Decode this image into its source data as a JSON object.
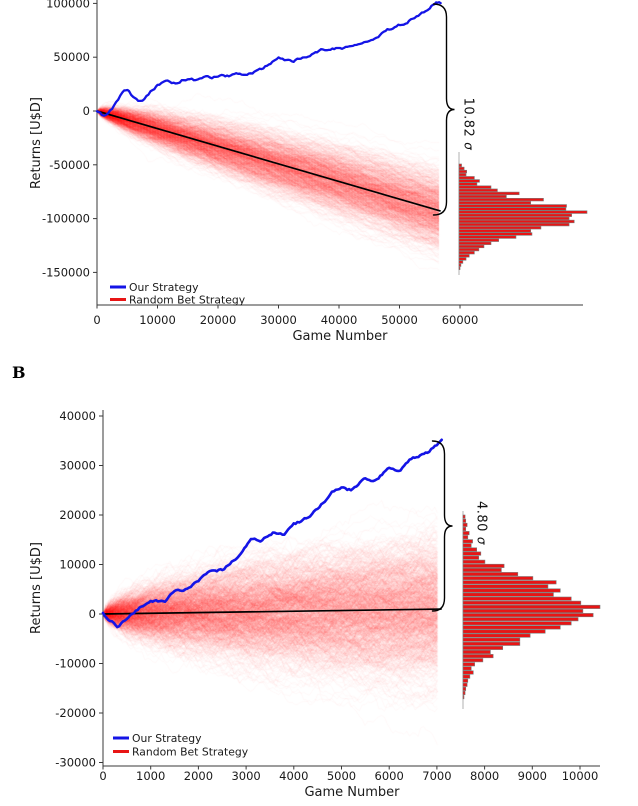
{
  "figure_title": "",
  "panel_b_label": "B",
  "chart_data": [
    {
      "id": "A",
      "type": "line",
      "subtype": "random-walk-ensemble-with-terminal-histogram",
      "xlabel": "Game Number",
      "ylabel": "Returns [U$D]",
      "xlim": [
        0,
        60000
      ],
      "ylim": [
        -150000,
        100000
      ],
      "x_ticks": [
        0,
        10000,
        20000,
        30000,
        40000,
        50000,
        60000
      ],
      "x_tick_labels": [
        "0",
        "10000",
        "20000",
        "30000",
        "40000",
        "50000",
        "60000"
      ],
      "y_ticks": [
        100000,
        50000,
        0,
        -50000,
        -100000,
        -150000
      ],
      "y_tick_labels": [
        "100000",
        "50000",
        "0",
        "-50000",
        "-100000",
        "-150000"
      ],
      "legend": [
        {
          "label": "Our Strategy",
          "color": "#1414e6"
        },
        {
          "label": "Random Bet Strategy",
          "color": "#e81515"
        }
      ],
      "annotation": {
        "value": "10.82",
        "sigma": "σ"
      },
      "colors": {
        "our_strategy": "#1414e6",
        "random_ensemble": "#ff0000",
        "mean_line": "#000000",
        "histogram_fill": "#e81414",
        "histogram_edge": "#7a7a7a"
      },
      "our_strategy_waypoints": [
        [
          0,
          0
        ],
        [
          800,
          -4000
        ],
        [
          1500,
          -4500
        ],
        [
          2500,
          2000
        ],
        [
          3500,
          11000
        ],
        [
          4200,
          17500
        ],
        [
          4800,
          19500
        ],
        [
          5300,
          18500
        ],
        [
          6000,
          13000
        ],
        [
          6800,
          8500
        ],
        [
          7500,
          10000
        ],
        [
          8500,
          15500
        ],
        [
          9200,
          20000
        ],
        [
          10000,
          24000
        ],
        [
          11000,
          26500
        ],
        [
          12000,
          27000
        ],
        [
          13000,
          25500
        ],
        [
          14000,
          28500
        ],
        [
          15000,
          30500
        ],
        [
          16000,
          29000
        ],
        [
          17000,
          29500
        ],
        [
          18000,
          31500
        ],
        [
          19000,
          30500
        ],
        [
          20000,
          32500
        ],
        [
          21500,
          32000
        ],
        [
          23000,
          34500
        ],
        [
          24500,
          33500
        ],
        [
          26000,
          36500
        ],
        [
          27500,
          39500
        ],
        [
          29000,
          45500
        ],
        [
          30000,
          49000
        ],
        [
          31000,
          47500
        ],
        [
          32500,
          46000
        ],
        [
          34000,
          50000
        ],
        [
          35500,
          53500
        ],
        [
          37000,
          56500
        ],
        [
          38000,
          55500
        ],
        [
          39500,
          58000
        ],
        [
          40500,
          56500
        ],
        [
          42000,
          60000
        ],
        [
          43500,
          63000
        ],
        [
          45000,
          66500
        ],
        [
          46500,
          70500
        ],
        [
          48000,
          75000
        ],
        [
          49500,
          78500
        ],
        [
          51000,
          82500
        ],
        [
          52500,
          87500
        ],
        [
          54000,
          92500
        ],
        [
          55000,
          96500
        ],
        [
          55800,
          100000
        ],
        [
          56300,
          101200
        ],
        [
          56800,
          100300
        ]
      ],
      "mean_line": [
        [
          0,
          0
        ],
        [
          56800,
          -93000
        ]
      ],
      "ensemble": {
        "games": 56800,
        "terminal_mean": -93000,
        "terminal_sigma": 17900,
        "sigma_gap": 10.82
      },
      "histogram": {
        "orientation": "horizontal",
        "center_value": -93000,
        "value_top": -49000,
        "value_step": -2900,
        "counts_rel": [
          0.02,
          0.04,
          0.06,
          0.055,
          0.12,
          0.16,
          0.14,
          0.25,
          0.3,
          0.47,
          0.37,
          0.66,
          0.56,
          0.84,
          0.835,
          1.0,
          0.88,
          0.86,
          0.9,
          0.86,
          0.64,
          0.56,
          0.57,
          0.445,
          0.31,
          0.25,
          0.195,
          0.155,
          0.12,
          0.08,
          0.055,
          0.03,
          0.015,
          0.008
        ]
      }
    },
    {
      "id": "B",
      "type": "line",
      "subtype": "random-walk-ensemble-with-terminal-histogram",
      "xlabel": "Game Number",
      "ylabel": "Returns [U$D]",
      "xlim": [
        0,
        10000
      ],
      "ylim": [
        -30000,
        40000
      ],
      "x_ticks": [
        0,
        1000,
        2000,
        3000,
        4000,
        5000,
        6000,
        7000,
        8000,
        9000,
        10000
      ],
      "x_tick_labels": [
        "0",
        "1000",
        "2000",
        "3000",
        "4000",
        "5000",
        "6000",
        "7000",
        "8000",
        "9000",
        "10000"
      ],
      "y_ticks": [
        40000,
        30000,
        20000,
        10000,
        0,
        -10000,
        -20000,
        -30000
      ],
      "y_tick_labels": [
        "40000",
        "30000",
        "20000",
        "10000",
        "0",
        "-10000",
        "-20000",
        "-30000"
      ],
      "legend": [
        {
          "label": "Our Strategy",
          "color": "#1414e6"
        },
        {
          "label": "Random Bet Strategy",
          "color": "#e81515"
        }
      ],
      "annotation": {
        "value": "4.80",
        "sigma": "σ"
      },
      "colors": {
        "our_strategy": "#1414e6",
        "random_ensemble": "#ff0000",
        "mean_line": "#000000",
        "histogram_fill": "#e81414",
        "histogram_edge": "#7a7a7a"
      },
      "our_strategy_waypoints": [
        [
          0,
          0
        ],
        [
          300,
          -2500
        ],
        [
          500,
          -1200
        ],
        [
          800,
          1500
        ],
        [
          1000,
          2500
        ],
        [
          1300,
          2700
        ],
        [
          1500,
          4500
        ],
        [
          1800,
          5200
        ],
        [
          2000,
          6500
        ],
        [
          2200,
          8500
        ],
        [
          2500,
          9000
        ],
        [
          2700,
          10500
        ],
        [
          3000,
          13500
        ],
        [
          3100,
          14800
        ],
        [
          3300,
          15000
        ],
        [
          3600,
          16500
        ],
        [
          3800,
          16200
        ],
        [
          4000,
          18000
        ],
        [
          4300,
          19500
        ],
        [
          4500,
          21500
        ],
        [
          4800,
          24500
        ],
        [
          5000,
          25500
        ],
        [
          5200,
          25000
        ],
        [
          5500,
          27500
        ],
        [
          5700,
          27200
        ],
        [
          6000,
          29500
        ],
        [
          6200,
          28700
        ],
        [
          6500,
          31500
        ],
        [
          6800,
          32500
        ],
        [
          7000,
          34300
        ],
        [
          7100,
          35200
        ]
      ],
      "mean_line": [
        [
          0,
          0
        ],
        [
          7100,
          1000
        ]
      ],
      "ensemble": {
        "games": 7100,
        "terminal_mean": 1000,
        "terminal_sigma": 7125,
        "sigma_gap": 4.8
      },
      "histogram": {
        "orientation": "horizontal",
        "center_value": 500,
        "value_top": 19800,
        "value_step": -830,
        "counts_rel": [
          0.015,
          0.02,
          0.03,
          0.02,
          0.045,
          0.035,
          0.07,
          0.06,
          0.1,
          0.13,
          0.115,
          0.16,
          0.3,
          0.28,
          0.4,
          0.51,
          0.68,
          0.62,
          0.71,
          0.66,
          0.79,
          0.86,
          1.0,
          0.875,
          0.95,
          0.84,
          0.79,
          0.71,
          0.6,
          0.49,
          0.415,
          0.415,
          0.29,
          0.2,
          0.22,
          0.145,
          0.085,
          0.06,
          0.075,
          0.05,
          0.035,
          0.03,
          0.02,
          0.015,
          0.007
        ]
      }
    }
  ]
}
